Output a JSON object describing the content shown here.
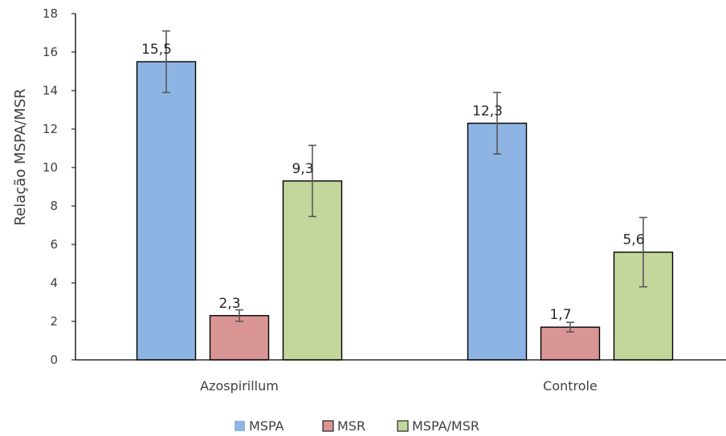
{
  "chart_data": {
    "type": "bar",
    "title": "",
    "xlabel": "",
    "ylabel": "Relação MSPA/MSR",
    "ylim": [
      0,
      18
    ],
    "yticks": [
      0,
      2,
      4,
      6,
      8,
      10,
      12,
      14,
      16,
      18
    ],
    "categories": [
      "Azospirillum",
      "Controle"
    ],
    "series": [
      {
        "name": "MSPA",
        "values": [
          15.5,
          12.3
        ],
        "labels": [
          "15,5",
          "12,3"
        ],
        "error": [
          1.6,
          1.6
        ],
        "color": "#8EB4E3"
      },
      {
        "name": "MSR",
        "values": [
          2.3,
          1.7
        ],
        "labels": [
          "2,3",
          "1,7"
        ],
        "error": [
          0.3,
          0.25
        ],
        "color": "#D99594"
      },
      {
        "name": "MSPA/MSR",
        "values": [
          9.3,
          5.6
        ],
        "labels": [
          "9,3",
          "5,6"
        ],
        "error": [
          1.85,
          1.8
        ],
        "color": "#C3D69B"
      }
    ],
    "legend_position": "bottom",
    "grid": false
  }
}
